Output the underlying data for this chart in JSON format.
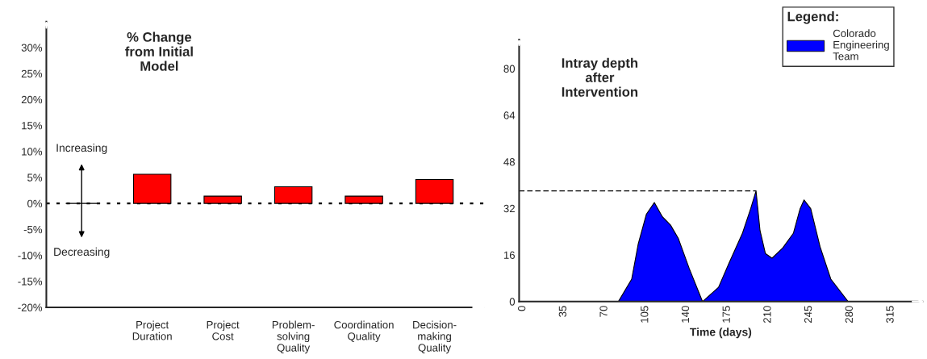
{
  "chart_data": [
    {
      "type": "bar",
      "title": "% Change\nfrom Initial\nModel",
      "categories": [
        null,
        "Project\nDuration",
        "Project\nCost",
        "Problem-\nsolving\nQuality",
        "Coordination\nQuality",
        "Decision-\nmaking\nQuality"
      ],
      "values": [
        null,
        5.6,
        1.4,
        3.2,
        1.4,
        4.6
      ],
      "color": "#ff0000",
      "ylim": [
        -20,
        35
      ],
      "yticks": [
        {
          "value": -20,
          "label": "-20%"
        },
        {
          "value": -15,
          "label": "-15%"
        },
        {
          "value": -10,
          "label": "-10%"
        },
        {
          "value": -5,
          "label": "-5%"
        },
        {
          "value": 0,
          "label": "0%"
        },
        {
          "value": 5,
          "label": "5%"
        },
        {
          "value": 10,
          "label": "10%"
        },
        {
          "value": 15,
          "label": "15%"
        },
        {
          "value": 20,
          "label": "20%"
        },
        {
          "value": 25,
          "label": "25%"
        },
        {
          "value": 30,
          "label": "30%"
        }
      ],
      "annotations": [
        "Increasing",
        "Decreasing"
      ],
      "ref_lines": [
        {
          "axis": "y",
          "value": 0,
          "color": "#000000",
          "line_style": "dotted"
        }
      ],
      "grid": false
    },
    {
      "type": "area",
      "title": "Intray depth\nafter\nIntervention",
      "xlabel": "Time (days)",
      "legend_title": "Legend:",
      "series": [
        {
          "name": "Colorado Engineering Team",
          "color": "#0000ff",
          "x": [
            0,
            81.9,
            93.3,
            98.9,
            105.9,
            112.7,
            119.6,
            126.5,
            133.3,
            142.5,
            153.9,
            167.6,
            176.7,
            188.1,
            195.1,
            199.7,
            203.1,
            207.7,
            213.4,
            222.5,
            231.7,
            237.4,
            240.8,
            246.5,
            254.5,
            263.7,
            278.5
          ],
          "values": [
            0,
            0,
            7.7,
            19.8,
            30.0,
            34.0,
            29.1,
            26.3,
            21.6,
            11.4,
            0,
            4.9,
            13.3,
            23.5,
            31.9,
            38,
            24.4,
            16.5,
            14.9,
            18.4,
            23.5,
            31.9,
            34.9,
            31.9,
            18.8,
            7.7,
            0
          ]
        }
      ],
      "xlim": [
        -3,
        342
      ],
      "xticks": [
        0,
        35,
        70,
        105,
        140,
        175,
        210,
        245,
        280,
        315
      ],
      "ylim": [
        0,
        90
      ],
      "yticks": [
        0,
        16,
        32,
        48,
        64,
        80
      ],
      "ref_lines": [
        {
          "axis": "y",
          "value": 38,
          "color": "#000000",
          "line_style": "dashed"
        }
      ],
      "grid": false,
      "legend": "top right"
    }
  ]
}
